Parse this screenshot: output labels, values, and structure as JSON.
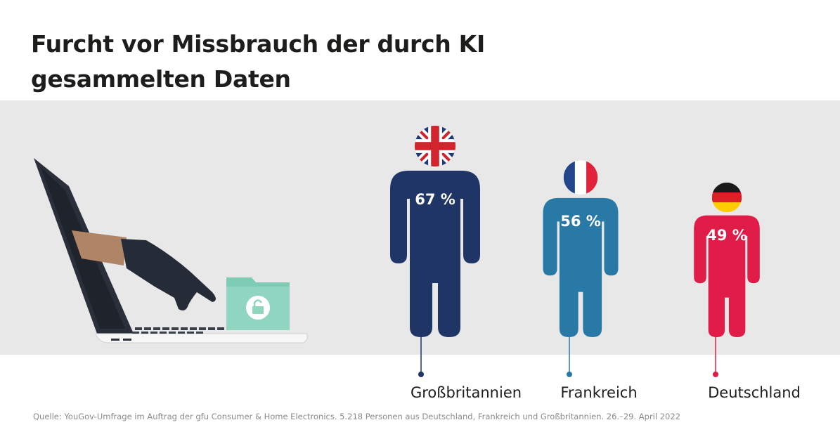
{
  "title": "Furcht vor Missbrauch der durch KI gesammelten Daten",
  "chart_data": {
    "type": "bar",
    "title": "Furcht vor Missbrauch der durch KI gesammelten Daten",
    "unit": "%",
    "categories": [
      "Großbritannien",
      "Frankreich",
      "Deutschland"
    ],
    "values": [
      67,
      56,
      49
    ],
    "value_labels": [
      "67 %",
      "56 %",
      "49 %"
    ],
    "colors": [
      "#1e3566",
      "#2979a6",
      "#e01d48"
    ]
  },
  "source": "Quelle: YouGov-Umfrage im Auftrag der gfu Consumer & Home Electronics. 5.218 Personen aus Deutschland, Frankreich und Großbritannien. 26.–29. April 2022"
}
